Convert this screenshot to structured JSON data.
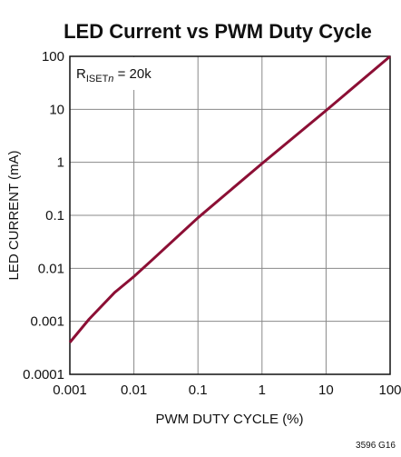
{
  "chart_data": {
    "type": "line",
    "title": "LED Current vs PWM Duty Cycle",
    "xlabel": "PWM DUTY CYCLE (%)",
    "ylabel": "LED CURRENT (mA)",
    "annotation": {
      "main": "R",
      "sub": "ISET",
      "sub_italic": "n",
      "rest": " = 20k"
    },
    "figure_id": "3596 G16",
    "xscale": "log",
    "yscale": "log",
    "grid": true,
    "xlim": [
      0.001,
      100
    ],
    "ylim": [
      0.0001,
      100
    ],
    "xticks": [
      0.001,
      0.01,
      0.1,
      1,
      10,
      100
    ],
    "yticks": [
      0.0001,
      0.001,
      0.01,
      0.1,
      1,
      10,
      100
    ],
    "x": [
      0.001,
      0.002,
      0.005,
      0.01,
      0.02,
      0.1,
      1,
      10,
      100
    ],
    "series": [
      {
        "color": "#8c0f35",
        "values": [
          0.0004,
          0.0011,
          0.0035,
          0.007,
          0.015,
          0.09,
          0.95,
          9.5,
          100
        ]
      }
    ]
  }
}
